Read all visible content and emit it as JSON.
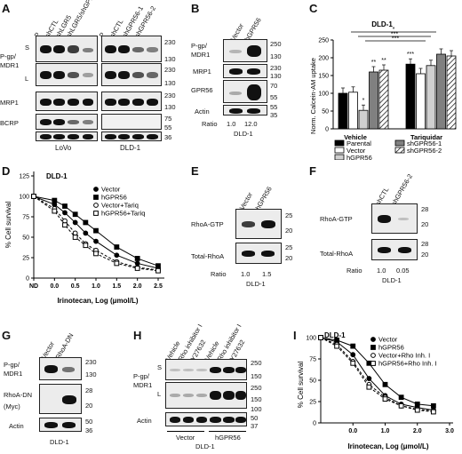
{
  "panels": {
    "A": {
      "label": "A",
      "lanes_lovo": [
        "P",
        "shCTL",
        "shLGR5",
        "shLGR5/shGPR56"
      ],
      "lanes_dld1": [
        "P",
        "shCTL",
        "shGPR56-1",
        "shGPR56-2"
      ],
      "rows": [
        "P-gp/",
        "MDR1",
        "MRP1",
        "BCRP",
        "Actin"
      ],
      "s_label": "S",
      "l_label": "L",
      "mw": [
        "230",
        "130",
        "230",
        "130",
        "230",
        "130",
        "75",
        "55",
        "36"
      ],
      "cell_lines": [
        "LoVo",
        "DLD-1"
      ]
    },
    "B": {
      "label": "B",
      "lanes": [
        "Vector",
        "hGPR56"
      ],
      "rows": [
        "P-gp/",
        "MDR1",
        "MRP1",
        "GPR56",
        "Actin"
      ],
      "mw": [
        "250",
        "130",
        "230",
        "130",
        "70",
        "55",
        "55",
        "35"
      ],
      "ratio_label": "Ratio",
      "ratios": [
        "1.0",
        "12.0"
      ],
      "cell_line": "DLD-1"
    },
    "C": {
      "label": "C",
      "title": "DLD-1",
      "ylabel": "Norm. Calcein-AM uptake",
      "groups": [
        "Vehicle",
        "Tariquidar"
      ],
      "legend": [
        "Parental",
        "Vector",
        "hGPR56",
        "shGPR56-1",
        "shGPR56-2"
      ],
      "sig": [
        "*",
        "***",
        "***",
        "**",
        "**",
        "*",
        "***"
      ]
    },
    "D": {
      "label": "D",
      "title": "DLD-1",
      "ylabel": "% Cell survival",
      "xlabel": "Irinotecan, Log (μmol/L)",
      "xticks": [
        "ND",
        "0.0",
        "0.5",
        "1.0",
        "1.5",
        "2.0",
        "2.5"
      ],
      "yticks": [
        "0",
        "25",
        "50",
        "75",
        "100",
        "125"
      ],
      "legend": [
        "Vector",
        "hGPR56",
        "Vector+Tariq",
        "hGPR56+Tariq"
      ]
    },
    "E": {
      "label": "E",
      "lanes": [
        "Vector",
        "hGPR56"
      ],
      "rows": [
        "RhoA-GTP",
        "Total-RhoA"
      ],
      "mw": [
        "25",
        "20",
        "25",
        "20"
      ],
      "ratio_label": "Ratio",
      "ratios": [
        "1.0",
        "1.5"
      ],
      "cell_line": "DLD-1"
    },
    "F": {
      "label": "F",
      "lanes": [
        "shCTL",
        "shGPR56-2"
      ],
      "rows": [
        "RhoA-GTP",
        "Total-RhoA"
      ],
      "mw": [
        "28",
        "20",
        "28",
        "20"
      ],
      "ratio_label": "Ratio",
      "ratios": [
        "1.0",
        "0.05"
      ],
      "cell_line": "DLD-1"
    },
    "G": {
      "label": "G",
      "lanes": [
        "Vector",
        "RhoA-DN"
      ],
      "rows": [
        "P-gp/",
        "MDR1",
        "RhoA-DN",
        "(Myc)",
        "Actin"
      ],
      "mw": [
        "230",
        "130",
        "28",
        "20",
        "50",
        "36"
      ],
      "cell_line": "DLD-1"
    },
    "H": {
      "label": "H",
      "lanes": [
        "Vehicle",
        "Rho inhibitor I",
        "Y27632",
        "Vehicle",
        "Rho inhibitor I",
        "Y27632"
      ],
      "rows": [
        "P-gp/",
        "MDR1",
        "Actin"
      ],
      "s_label": "S",
      "l_label": "L",
      "mw": [
        "250",
        "150",
        "250",
        "150",
        "100",
        "50",
        "37"
      ],
      "groups": [
        "Vector",
        "hGPR56"
      ],
      "cell_line": "DLD-1"
    },
    "I": {
      "label": "I",
      "title": "DLD-1",
      "ylabel": "% Cell survival",
      "xlabel": "Irinotecan, Log (μmol/L)",
      "xticks": [
        "0.0",
        "1.0",
        "2.0",
        "3.0"
      ],
      "yticks": [
        "0",
        "25",
        "50",
        "75",
        "100"
      ],
      "legend": [
        "Vector",
        "hGPR56",
        "Vector+Rho Inh. I",
        "hGPR56+Rho Inh. I"
      ]
    }
  },
  "chart_data": [
    {
      "type": "bar",
      "title": "DLD-1",
      "ylabel": "Norm. Calcein-AM uptake",
      "categories": [
        "Vehicle",
        "Tariquidar"
      ],
      "ylim": [
        0,
        250
      ],
      "yticks": [
        "0",
        "50",
        "100",
        "150",
        "200",
        "250"
      ],
      "series": [
        {
          "name": "Parental",
          "values": [
            100,
            182
          ],
          "color": "#000000"
        },
        {
          "name": "Vector",
          "values": [
            103,
            155
          ],
          "color": "#ffffff"
        },
        {
          "name": "hGPR56",
          "values": [
            52,
            178
          ],
          "color": "#d0d0d0"
        },
        {
          "name": "shGPR56-1",
          "values": [
            160,
            210
          ],
          "color": "#808080"
        },
        {
          "name": "shGPR56-2",
          "values": [
            165,
            205
          ],
          "color": "hatch"
        }
      ]
    },
    {
      "type": "line",
      "title": "DLD-1",
      "xlabel": "Irinotecan, Log (μmol/L)",
      "ylabel": "% Cell survival",
      "xlim": [
        -0.5,
        2.5
      ],
      "ylim": [
        0,
        125
      ],
      "x": [
        -0.5,
        0.0,
        0.25,
        0.5,
        0.75,
        1.0,
        1.5,
        2.0,
        2.5
      ],
      "series": [
        {
          "name": "Vector",
          "values": [
            100,
            90,
            80,
            68,
            55,
            45,
            28,
            18,
            12
          ]
        },
        {
          "name": "hGPR56",
          "values": [
            100,
            95,
            88,
            78,
            68,
            58,
            38,
            24,
            15
          ]
        },
        {
          "name": "Vector+Tariq",
          "values": [
            100,
            85,
            70,
            55,
            42,
            34,
            20,
            13,
            10
          ]
        },
        {
          "name": "hGPR56+Tariq",
          "values": [
            100,
            82,
            65,
            50,
            40,
            30,
            18,
            12,
            9
          ]
        }
      ]
    },
    {
      "type": "line",
      "title": "DLD-1",
      "xlabel": "Irinotecan, Log (μmol/L)",
      "ylabel": "% Cell survival",
      "xlim": [
        -1.0,
        3.0
      ],
      "ylim": [
        0,
        100
      ],
      "x": [
        -1.0,
        -0.5,
        0.0,
        0.5,
        1.0,
        1.5,
        2.0,
        2.5
      ],
      "series": [
        {
          "name": "Vector",
          "values": [
            100,
            95,
            80,
            52,
            32,
            22,
            18,
            15
          ]
        },
        {
          "name": "hGPR56",
          "values": [
            100,
            97,
            90,
            70,
            45,
            30,
            22,
            20
          ]
        },
        {
          "name": "Vector+Rho Inh. I",
          "values": [
            100,
            92,
            72,
            45,
            30,
            20,
            16,
            14
          ]
        },
        {
          "name": "hGPR56+Rho Inh. I",
          "values": [
            100,
            90,
            70,
            42,
            28,
            20,
            15,
            13
          ]
        }
      ]
    }
  ]
}
